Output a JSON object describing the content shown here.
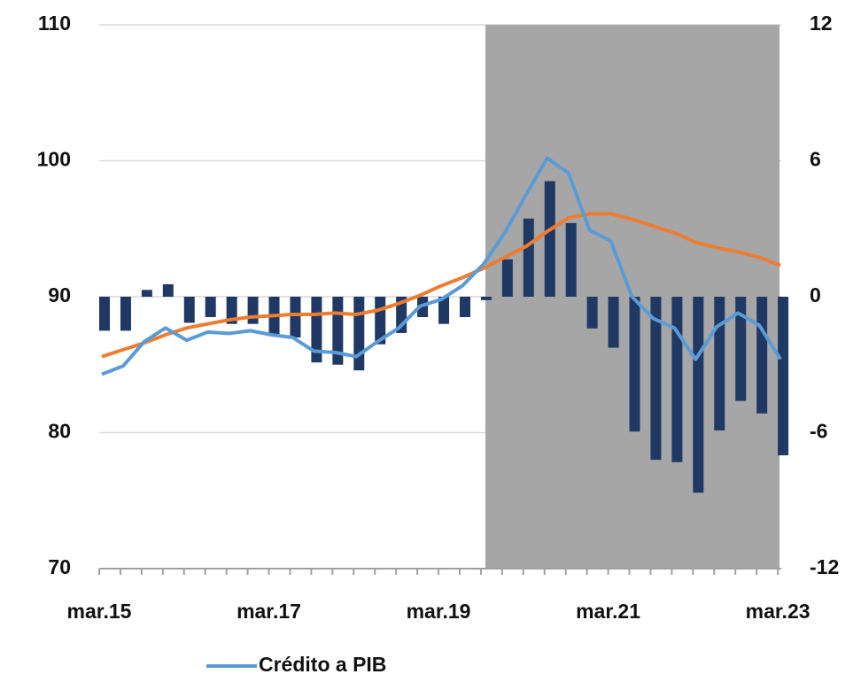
{
  "chart_data": {
    "type": "bar_line",
    "categories": [
      "mar.15",
      null,
      null,
      null,
      null,
      null,
      null,
      null,
      "mar.17",
      null,
      null,
      null,
      null,
      null,
      null,
      null,
      "mar.19",
      null,
      null,
      null,
      null,
      null,
      null,
      null,
      "mar.21",
      null,
      null,
      null,
      null,
      null,
      null,
      null,
      "mar.23"
    ],
    "series": [
      {
        "type": "bar",
        "axis": "y2",
        "color": "#1f3864",
        "values": [
          -1.5,
          -1.5,
          0.3,
          0.55,
          -1.15,
          -0.9,
          -1.2,
          -1.2,
          -1.7,
          -1.8,
          -2.9,
          -3.0,
          -3.25,
          -2.1,
          -1.6,
          -0.9,
          -1.2,
          -0.9,
          -0.15,
          1.65,
          3.45,
          5.1,
          3.25,
          -1.4,
          -2.25,
          -5.95,
          -7.2,
          -7.3,
          -8.65,
          -5.9,
          -4.6,
          -5.15,
          -7.0
        ]
      },
      {
        "type": "line",
        "axis": "y",
        "color": "#ed7d31",
        "values": [
          85.6,
          86.1,
          86.6,
          87.2,
          87.7,
          88.0,
          88.3,
          88.5,
          88.6,
          88.7,
          88.7,
          88.8,
          88.7,
          89.0,
          89.5,
          90.1,
          90.8,
          91.4,
          92.1,
          92.9,
          93.7,
          94.8,
          95.8,
          96.1,
          96.1,
          95.7,
          95.2,
          94.7,
          94.0,
          93.6,
          93.3,
          92.9,
          92.3
        ]
      },
      {
        "type": "line",
        "axis": "y",
        "name": "Crédito a PIB",
        "color": "#5b9bd5",
        "values": [
          84.3,
          84.9,
          86.7,
          87.7,
          86.8,
          87.4,
          87.3,
          87.5,
          87.2,
          87.0,
          86.0,
          85.9,
          85.6,
          86.7,
          87.7,
          89.3,
          89.8,
          90.8,
          92.4,
          94.7,
          97.5,
          100.2,
          99.1,
          94.9,
          94.1,
          90.0,
          88.4,
          87.7,
          85.4,
          87.8,
          88.8,
          87.9,
          85.4
        ]
      }
    ],
    "ylim": [
      70,
      110
    ],
    "yticks": [
      70,
      80,
      90,
      100,
      110
    ],
    "y2lim": [
      -12,
      12
    ],
    "y2ticks": [
      -12,
      -6,
      0,
      6,
      12
    ],
    "grid": true,
    "legend": "bottom"
  }
}
